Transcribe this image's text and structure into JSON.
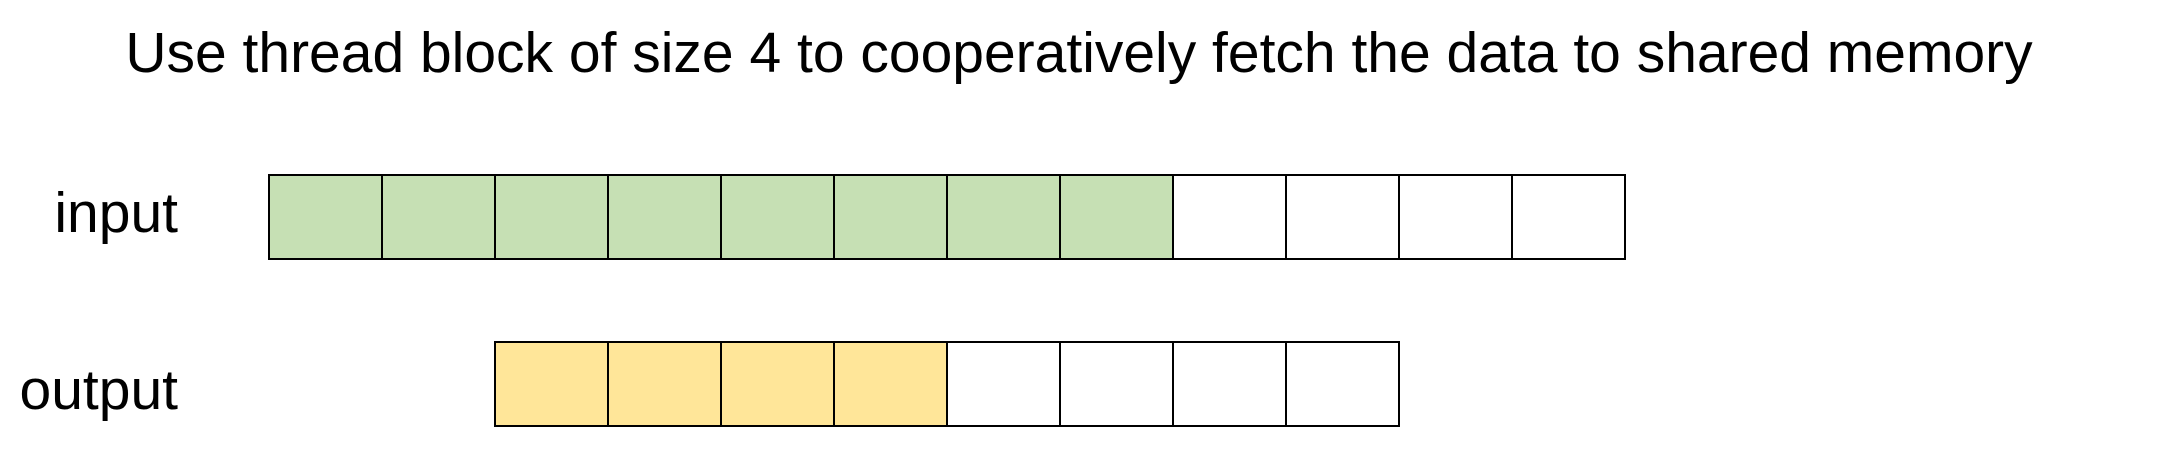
{
  "title": "Use thread block of size 4 to cooperatively fetch the data to shared memory",
  "colors": {
    "input_fill": "#c6e0b4",
    "output_fill": "#ffe699",
    "empty_fill": "#ffffff"
  },
  "rows": {
    "input": {
      "label": "input",
      "cell_count": 12,
      "filled_count": 8
    },
    "output": {
      "label": "output",
      "cell_count": 8,
      "filled_count": 4
    }
  }
}
